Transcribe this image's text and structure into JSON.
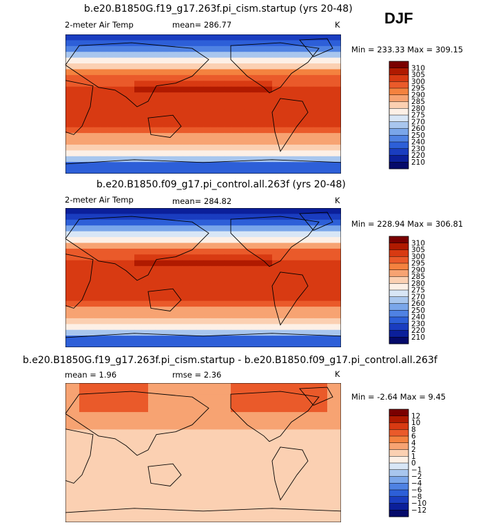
{
  "season": "DJF",
  "panels": [
    {
      "title": "b.e20.B1850G.f19_g17.263f.pi_cism.startup (yrs 20-48)",
      "variable": "2-meter Air Temp",
      "stat_text": "mean= 286.77",
      "units": "K",
      "range_text": "Min = 233.33 Max = 309.15"
    },
    {
      "title": "b.e20.B1850.f09_g17.pi_control.all.263f (yrs 20-48)",
      "variable": "2-meter Air Temp",
      "stat_text": "mean= 284.82",
      "units": "K",
      "range_text": "Min = 228.94 Max = 306.81"
    },
    {
      "title": "b.e20.B1850G.f19_g17.263f.pi_cism.startup - b.e20.B1850.f09_g17.pi_control.all.263f",
      "stat_left": "mean =   1.96",
      "stat_mid": "rmse =   2.36",
      "units": "K",
      "range_text": "Min =  -2.64 Max =   9.45"
    }
  ],
  "chart_data": [
    {
      "type": "heatmap",
      "title": "b.e20.B1850G.f19_g17.263f.pi_cism.startup (yrs 20-48)",
      "variable": "2-meter Air Temp",
      "units": "K",
      "mean": 286.77,
      "min": 233.33,
      "max": 309.15,
      "colorbar_levels": [
        310,
        305,
        300,
        295,
        290,
        285,
        280,
        275,
        270,
        260,
        250,
        240,
        230,
        220,
        210
      ],
      "colorbar_colors": [
        "#7a0000",
        "#b01a00",
        "#d83a12",
        "#ea5a2a",
        "#f4823f",
        "#f7a372",
        "#fbd0b2",
        "#fdf0e6",
        "#d8e6f6",
        "#a8c6ee",
        "#7aa6ea",
        "#4f82e3",
        "#2d5fd8",
        "#1a3dc0",
        "#0b1f9a",
        "#050a6a"
      ]
    },
    {
      "type": "heatmap",
      "title": "b.e20.B1850.f09_g17.pi_control.all.263f (yrs 20-48)",
      "variable": "2-meter Air Temp",
      "units": "K",
      "mean": 284.82,
      "min": 228.94,
      "max": 306.81,
      "colorbar_levels": [
        310,
        305,
        300,
        295,
        290,
        285,
        280,
        275,
        270,
        260,
        250,
        240,
        230,
        220,
        210
      ],
      "colorbar_colors": [
        "#7a0000",
        "#b01a00",
        "#d83a12",
        "#ea5a2a",
        "#f4823f",
        "#f7a372",
        "#fbd0b2",
        "#fdf0e6",
        "#d8e6f6",
        "#a8c6ee",
        "#7aa6ea",
        "#4f82e3",
        "#2d5fd8",
        "#1a3dc0",
        "#0b1f9a",
        "#050a6a"
      ]
    },
    {
      "type": "heatmap",
      "title": "b.e20.B1850G.f19_g17.263f.pi_cism.startup - b.e20.B1850.f09_g17.pi_control.all.263f",
      "units": "K",
      "mean": 1.96,
      "rmse": 2.36,
      "min": -2.64,
      "max": 9.45,
      "colorbar_levels": [
        12,
        10,
        8,
        6,
        4,
        2,
        1,
        0,
        -1,
        -2,
        -4,
        -6,
        -8,
        -10,
        -12
      ],
      "colorbar_colors": [
        "#7a0000",
        "#b01a00",
        "#d83a12",
        "#ea5a2a",
        "#f4823f",
        "#f7a372",
        "#fbd0b2",
        "#fdf0e6",
        "#d8e6f6",
        "#a8c6ee",
        "#7aa6ea",
        "#4f82e3",
        "#2d5fd8",
        "#1a3dc0",
        "#0b1f9a",
        "#050a6a"
      ]
    }
  ]
}
